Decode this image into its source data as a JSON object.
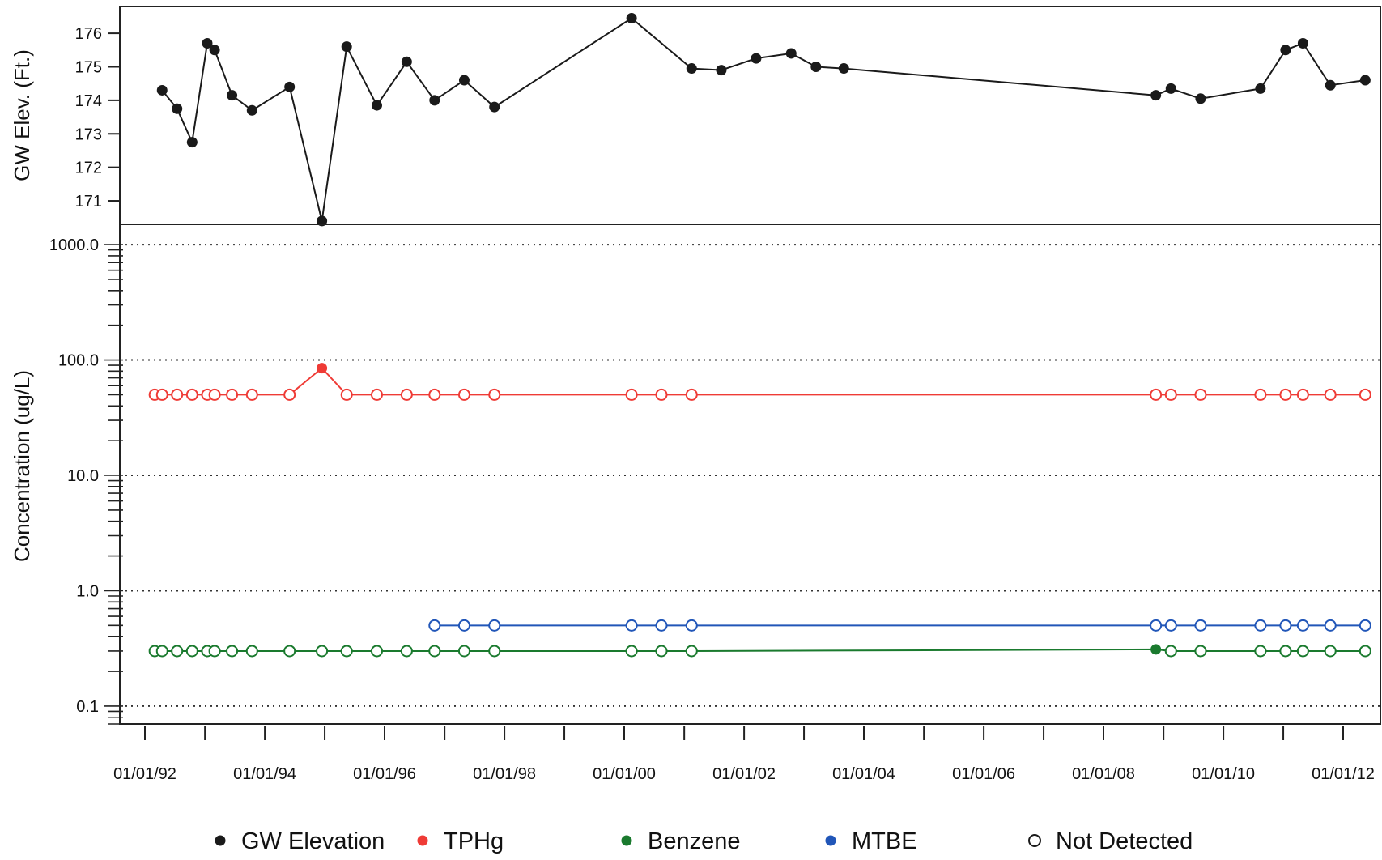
{
  "chart_data": [
    {
      "type": "line",
      "ylabel": "GW Elev. (Ft.)",
      "ylim": [
        170.3,
        176.8
      ],
      "yticks": [
        171,
        172,
        173,
        174,
        175,
        176
      ],
      "grid": false,
      "series": [
        {
          "name": "GW Elevation",
          "color": "#1a1a1a",
          "points": [
            [
              "1992-04-15",
              174.3
            ],
            [
              "1992-07-15",
              173.75
            ],
            [
              "1992-10-15",
              172.75
            ],
            [
              "1993-01-15",
              175.7
            ],
            [
              "1993-03-01",
              175.5
            ],
            [
              "1993-06-15",
              174.15
            ],
            [
              "1993-10-15",
              173.7
            ],
            [
              "1994-06-01",
              174.4
            ],
            [
              "1994-12-15",
              170.4
            ],
            [
              "1995-05-15",
              175.6
            ],
            [
              "1995-11-15",
              173.85
            ],
            [
              "1996-05-15",
              175.15
            ],
            [
              "1996-11-01",
              174.0
            ],
            [
              "1997-05-01",
              174.6
            ],
            [
              "1997-11-01",
              173.8
            ],
            [
              "2000-02-15",
              176.45
            ],
            [
              "2001-02-15",
              174.95
            ],
            [
              "2001-08-15",
              174.9
            ],
            [
              "2002-03-15",
              175.25
            ],
            [
              "2002-10-15",
              175.4
            ],
            [
              "2003-03-15",
              175.0
            ],
            [
              "2003-09-01",
              174.95
            ],
            [
              "2008-11-15",
              174.15
            ],
            [
              "2009-02-15",
              174.35
            ],
            [
              "2009-08-15",
              174.05
            ],
            [
              "2010-08-15",
              174.35
            ],
            [
              "2011-01-15",
              175.5
            ],
            [
              "2011-05-01",
              175.7
            ],
            [
              "2011-10-15",
              174.45
            ],
            [
              "2012-05-15",
              174.6
            ]
          ]
        }
      ]
    },
    {
      "type": "line",
      "ylabel": "Concentration (ug/L)",
      "yscale": "log",
      "ylim": [
        0.07,
        1500
      ],
      "yticks": [
        0.1,
        1.0,
        10.0,
        100.0,
        1000.0
      ],
      "ytick_labels": [
        "0.1",
        "1.0",
        "10.0",
        "100.0",
        "1000.0"
      ],
      "xlim": [
        "1991-08-01",
        "2012-08-15"
      ],
      "xticks": [
        "1992-01-01",
        "1993-01-01",
        "1994-01-01",
        "1995-01-01",
        "1996-01-01",
        "1997-01-01",
        "1998-01-01",
        "1999-01-01",
        "2000-01-01",
        "2001-01-01",
        "2002-01-01",
        "2003-01-01",
        "2004-01-01",
        "2005-01-01",
        "2006-01-01",
        "2007-01-01",
        "2008-01-01",
        "2009-01-01",
        "2010-01-01",
        "2011-01-01",
        "2012-01-01"
      ],
      "xtick_labels": [
        "01/01/92",
        "01/01/94",
        "01/01/96",
        "01/01/98",
        "01/01/00",
        "01/01/02",
        "01/01/04",
        "01/01/06",
        "01/01/08",
        "01/01/10",
        "01/01/12"
      ],
      "xtick_labels_on": [
        "1992-01-01",
        "1994-01-01",
        "1996-01-01",
        "1998-01-01",
        "2000-01-01",
        "2002-01-01",
        "2004-01-01",
        "2006-01-01",
        "2008-01-01",
        "2010-01-01",
        "2012-01-01"
      ],
      "grid": "dotted horizontal at decades",
      "series": [
        {
          "name": "TPHg",
          "color": "#ef3b36",
          "points": [
            [
              "1992-03-01",
              50,
              false
            ],
            [
              "1992-04-15",
              50,
              false
            ],
            [
              "1992-07-15",
              50,
              false
            ],
            [
              "1992-10-15",
              50,
              false
            ],
            [
              "1993-01-15",
              50,
              false
            ],
            [
              "1993-03-01",
              50,
              false
            ],
            [
              "1993-06-15",
              50,
              false
            ],
            [
              "1993-10-15",
              50,
              false
            ],
            [
              "1994-06-01",
              50,
              false
            ],
            [
              "1994-12-15",
              85,
              true
            ],
            [
              "1995-05-15",
              50,
              false
            ],
            [
              "1995-11-15",
              50,
              false
            ],
            [
              "1996-05-15",
              50,
              false
            ],
            [
              "1996-11-01",
              50,
              false
            ],
            [
              "1997-05-01",
              50,
              false
            ],
            [
              "1997-11-01",
              50,
              false
            ],
            [
              "2000-02-15",
              50,
              false
            ],
            [
              "2000-08-15",
              50,
              false
            ],
            [
              "2001-02-15",
              50,
              false
            ],
            [
              "2008-11-15",
              50,
              false
            ],
            [
              "2009-02-15",
              50,
              false
            ],
            [
              "2009-08-15",
              50,
              false
            ],
            [
              "2010-08-15",
              50,
              false
            ],
            [
              "2011-01-15",
              50,
              false
            ],
            [
              "2011-05-01",
              50,
              false
            ],
            [
              "2011-10-15",
              50,
              false
            ],
            [
              "2012-05-15",
              50,
              false
            ]
          ]
        },
        {
          "name": "Benzene",
          "color": "#1a7a2e",
          "points": [
            [
              "1992-03-01",
              0.3,
              false
            ],
            [
              "1992-04-15",
              0.3,
              false
            ],
            [
              "1992-07-15",
              0.3,
              false
            ],
            [
              "1992-10-15",
              0.3,
              false
            ],
            [
              "1993-01-15",
              0.3,
              false
            ],
            [
              "1993-03-01",
              0.3,
              false
            ],
            [
              "1993-06-15",
              0.3,
              false
            ],
            [
              "1993-10-15",
              0.3,
              false
            ],
            [
              "1994-06-01",
              0.3,
              false
            ],
            [
              "1994-12-15",
              0.3,
              false
            ],
            [
              "1995-05-15",
              0.3,
              false
            ],
            [
              "1995-11-15",
              0.3,
              false
            ],
            [
              "1996-05-15",
              0.3,
              false
            ],
            [
              "1996-11-01",
              0.3,
              false
            ],
            [
              "1997-05-01",
              0.3,
              false
            ],
            [
              "1997-11-01",
              0.3,
              false
            ],
            [
              "2000-02-15",
              0.3,
              false
            ],
            [
              "2000-08-15",
              0.3,
              false
            ],
            [
              "2001-02-15",
              0.3,
              false
            ],
            [
              "2008-11-15",
              0.31,
              true
            ],
            [
              "2009-02-15",
              0.3,
              false
            ],
            [
              "2009-08-15",
              0.3,
              false
            ],
            [
              "2010-08-15",
              0.3,
              false
            ],
            [
              "2011-01-15",
              0.3,
              false
            ],
            [
              "2011-05-01",
              0.3,
              false
            ],
            [
              "2011-10-15",
              0.3,
              false
            ],
            [
              "2012-05-15",
              0.3,
              false
            ]
          ]
        },
        {
          "name": "MTBE",
          "color": "#2156b8",
          "points": [
            [
              "1996-11-01",
              0.5,
              false
            ],
            [
              "1997-05-01",
              0.5,
              false
            ],
            [
              "1997-11-01",
              0.5,
              false
            ],
            [
              "2000-02-15",
              0.5,
              false
            ],
            [
              "2000-08-15",
              0.5,
              false
            ],
            [
              "2001-02-15",
              0.5,
              false
            ],
            [
              "2008-11-15",
              0.5,
              false
            ],
            [
              "2009-02-15",
              0.5,
              false
            ],
            [
              "2009-08-15",
              0.5,
              false
            ],
            [
              "2010-08-15",
              0.5,
              false
            ],
            [
              "2011-01-15",
              0.5,
              false
            ],
            [
              "2011-05-01",
              0.5,
              false
            ],
            [
              "2011-10-15",
              0.5,
              false
            ],
            [
              "2012-05-15",
              0.5,
              false
            ]
          ]
        }
      ]
    }
  ],
  "legend": {
    "placement": "bottom",
    "items": [
      {
        "label": "GW Elevation",
        "color": "#1a1a1a",
        "filled": true,
        "icon": "filled-dot-icon"
      },
      {
        "label": "TPHg",
        "color": "#ef3b36",
        "filled": true,
        "icon": "filled-dot-icon"
      },
      {
        "label": "Benzene",
        "color": "#1a7a2e",
        "filled": true,
        "icon": "filled-dot-icon"
      },
      {
        "label": "MTBE",
        "color": "#2156b8",
        "filled": true,
        "icon": "filled-dot-icon"
      },
      {
        "label": "Not Detected",
        "color": "#1a1a1a",
        "filled": false,
        "icon": "open-circle-icon"
      }
    ]
  }
}
